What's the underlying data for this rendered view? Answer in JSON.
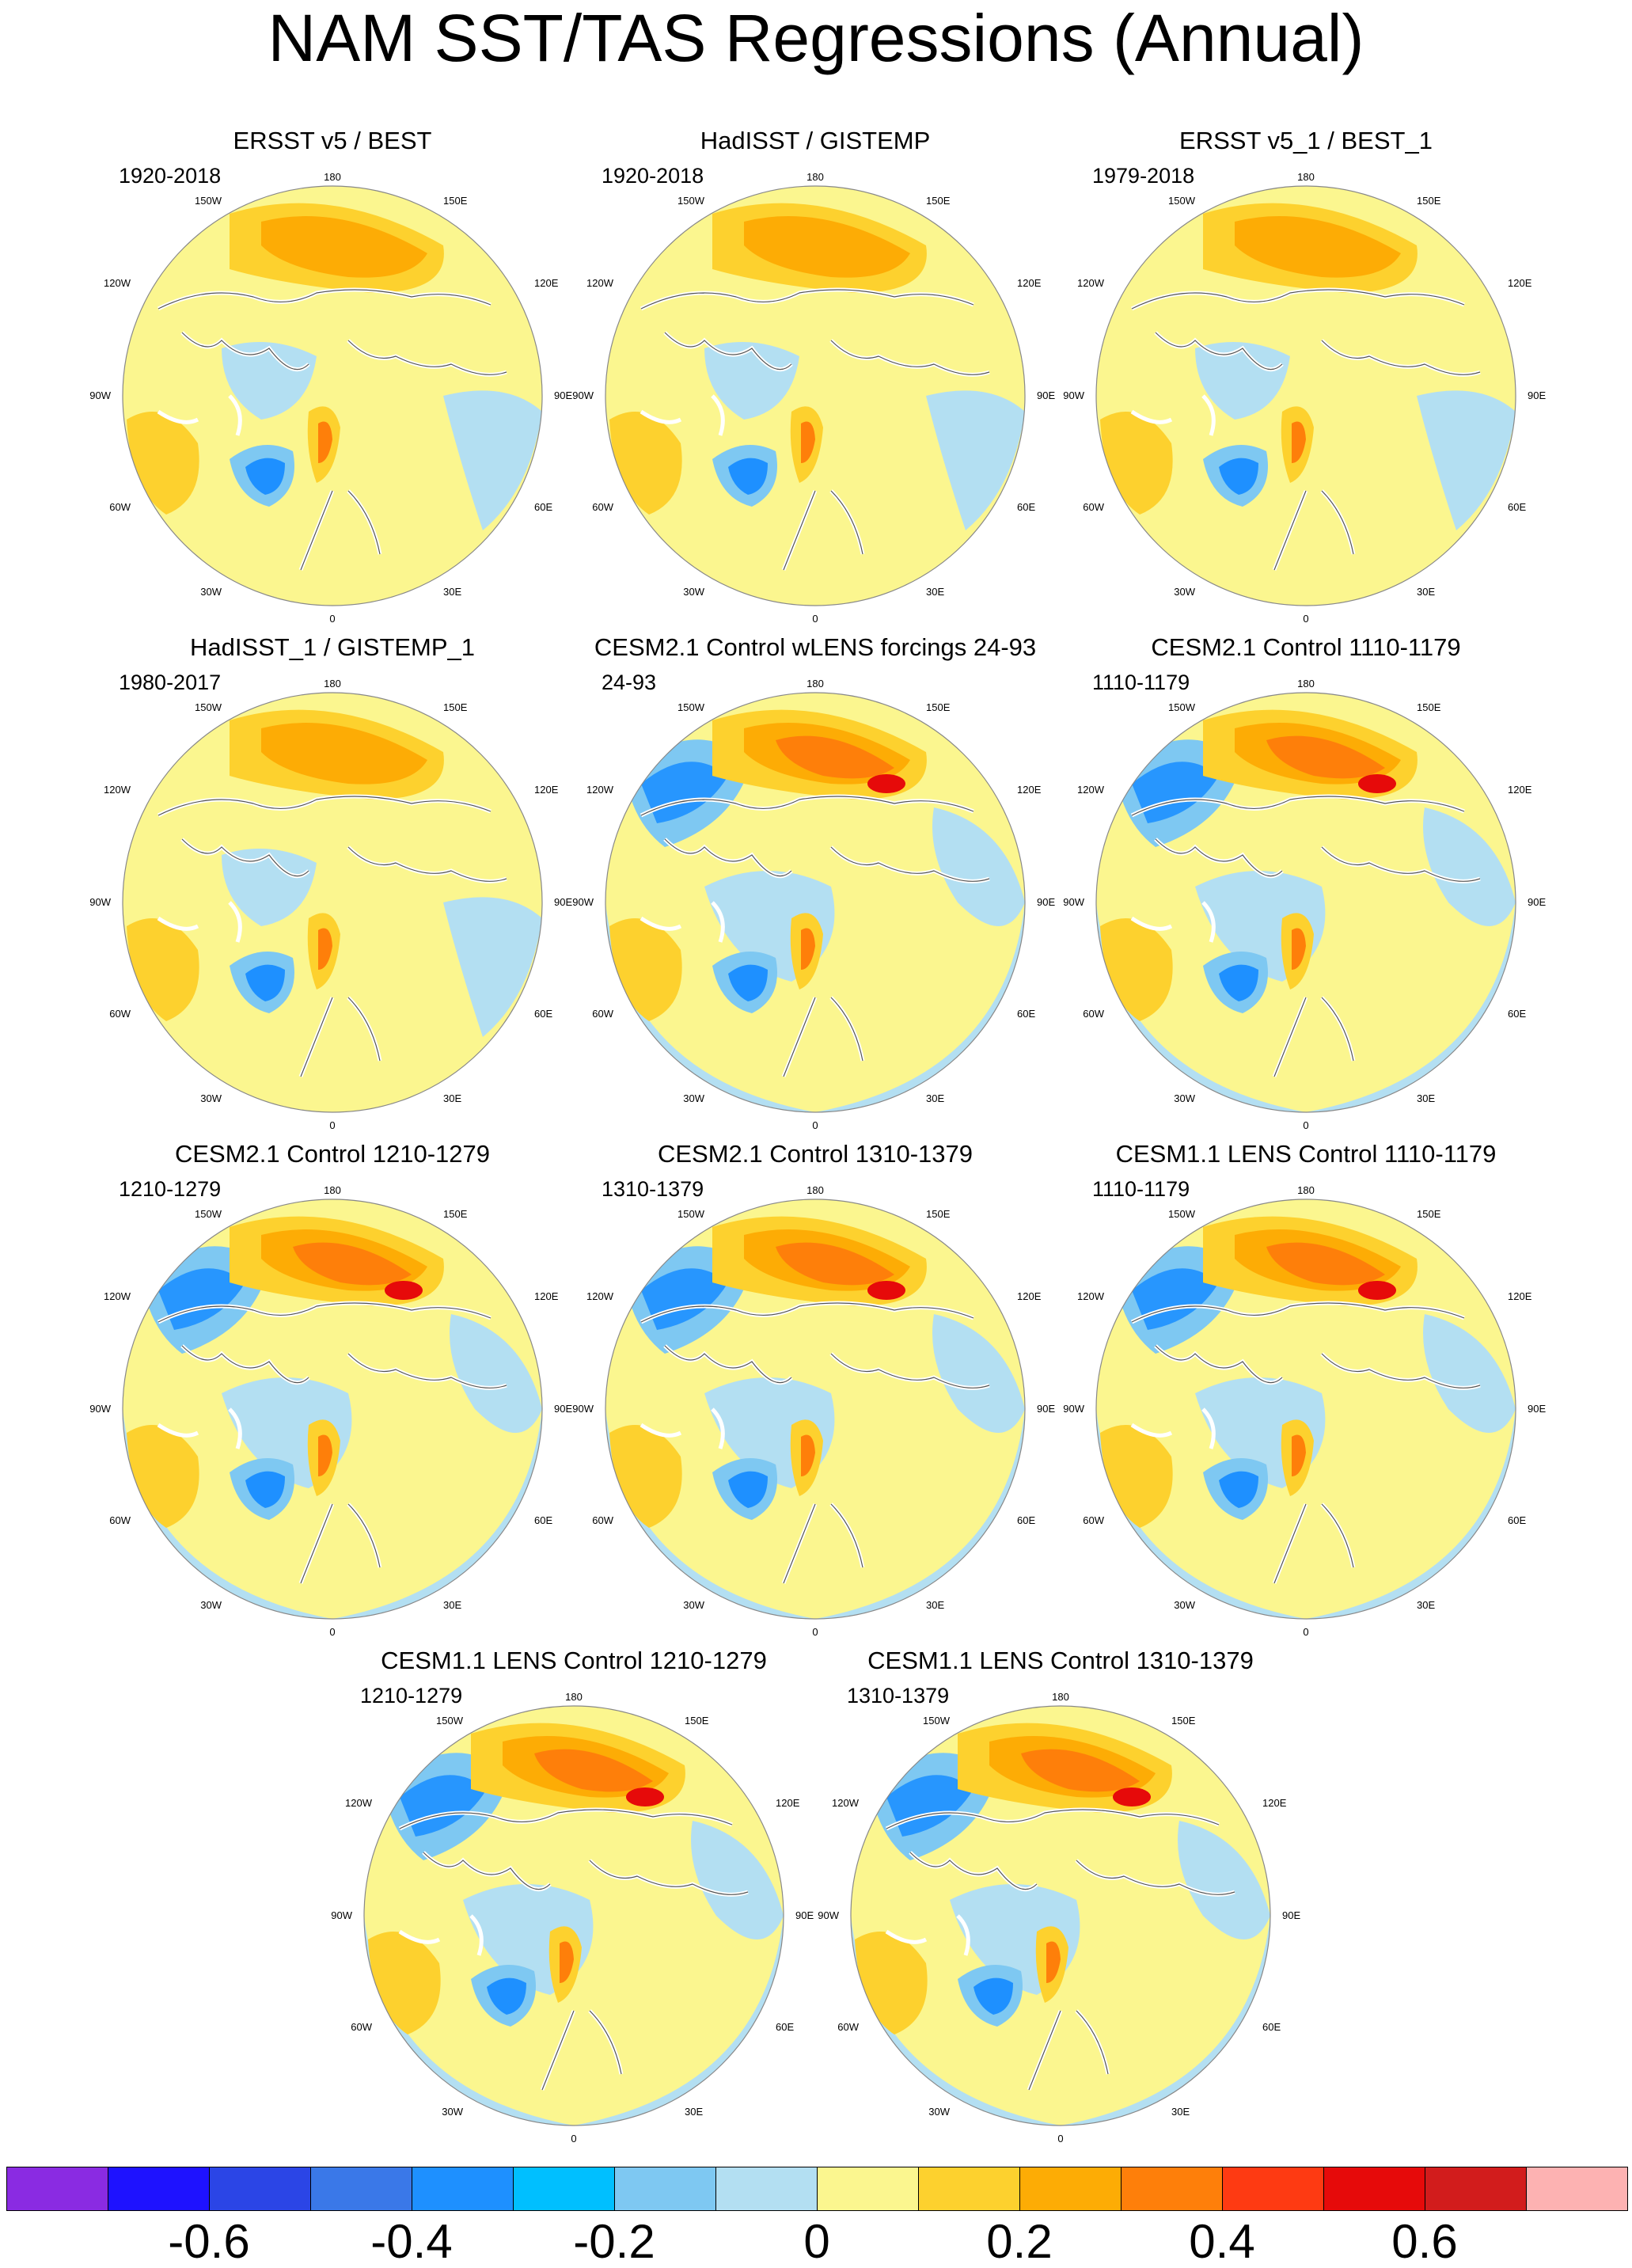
{
  "title": "NAM SST/TAS Regressions (Annual)",
  "lon_labels": {
    "top": "180",
    "bottom": "0",
    "left": "90W",
    "right": "90E",
    "upper_left_1": "150W",
    "upper_left_2": "120W",
    "upper_right_1": "150E",
    "upper_right_2": "120E",
    "lower_left_1": "60W",
    "lower_left_2": "30W",
    "lower_right_1": "60E",
    "lower_right_2": "30E"
  },
  "panels": [
    {
      "title": "ERSST v5 / BEST",
      "period": "1920-2018"
    },
    {
      "title": "HadISST / GISTEMP",
      "period": "1920-2018"
    },
    {
      "title": "ERSST v5_1 / BEST_1",
      "period": "1979-2018"
    },
    {
      "title": "HadISST_1 / GISTEMP_1",
      "period": "1980-2017"
    },
    {
      "title": "CESM2.1 Control wLENS forcings 24-93",
      "period": "24-93"
    },
    {
      "title": "CESM2.1 Control 1110-1179",
      "period": "1110-1179"
    },
    {
      "title": "CESM2.1 Control 1210-1279",
      "period": "1210-1279"
    },
    {
      "title": "CESM2.1 Control 1310-1379",
      "period": "1310-1379"
    },
    {
      "title": "CESM1.1 LENS Control 1110-1179",
      "period": "1110-1179"
    },
    {
      "title": "CESM1.1 LENS Control 1210-1279",
      "period": "1210-1279"
    },
    {
      "title": "CESM1.1 LENS Control 1310-1379",
      "period": "1310-1379"
    }
  ],
  "colorbar": {
    "colors": [
      "#8a2be2",
      "#1e12ff",
      "#2b45e6",
      "#3a78e8",
      "#1e90ff",
      "#00bfff",
      "#7ec8f2",
      "#b3dff2",
      "#fbf68f",
      "#fdd12e",
      "#fdac05",
      "#fe7f0a",
      "#fe3a12",
      "#e60a0a",
      "#d21c1c",
      "#fdb2b2"
    ],
    "tick_labels": [
      "-0.6",
      "-0.4",
      "-0.2",
      "0",
      "0.2",
      "0.4",
      "0.6"
    ]
  },
  "palette": {
    "ocean_background": "#fbf68f",
    "light_blue": "#b3dff2",
    "medium_blue": "#7ec8f2",
    "blue": "#1e90ff",
    "orange_light": "#fdd12e",
    "orange": "#fdac05",
    "orange_dark": "#fe7f0a",
    "red": "#e60a0a",
    "coast": "#ffffff"
  }
}
